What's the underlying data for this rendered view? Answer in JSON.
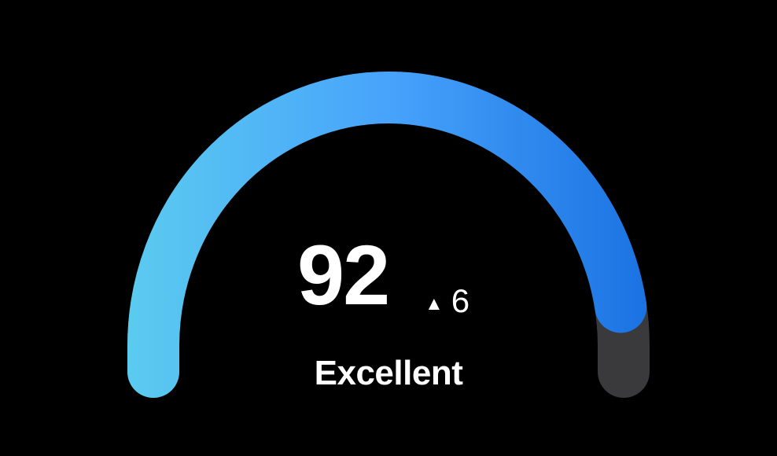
{
  "chart_data": {
    "type": "gauge",
    "value": 92,
    "min": 0,
    "max": 100,
    "value_label": "92",
    "delta": "6",
    "delta_direction": "up",
    "delta_icon": "triangle-up-icon",
    "rating": "Excellent",
    "colors": {
      "start": "#5bcbef",
      "mid": "#47a3fb",
      "end": "#1a72e2",
      "track": "#3a3a3c",
      "background": "#000000"
    }
  }
}
